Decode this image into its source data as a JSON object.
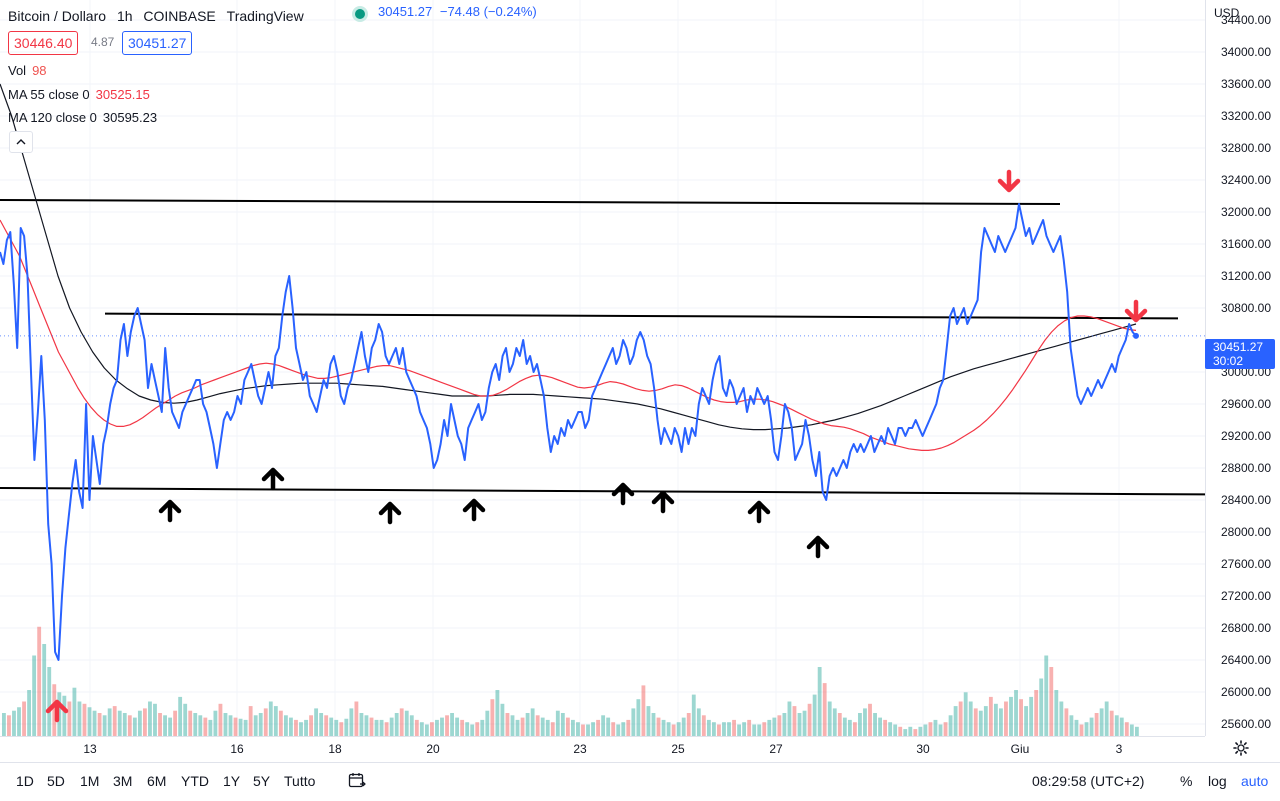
{
  "header": {
    "symbol": "Bitcoin / Dollaro",
    "interval": "1h",
    "exchange": "COINBASE",
    "source": "TradingView",
    "last": "30451.27",
    "change": "−74.48 (−0.24%)",
    "bid": "30446.40",
    "spread": "4.87",
    "ask": "30451.27"
  },
  "indicators": {
    "vol_label": "Vol",
    "vol_value": "98",
    "ma55_label": "MA 55 close 0",
    "ma55_value": "30525.15",
    "ma120_label": "MA 120 close 0",
    "ma120_value": "30595.23",
    "collapse_icon": "chevron-up-icon"
  },
  "price_axis": {
    "currency": "USD",
    "ticks": [
      "34400.00",
      "34000.00",
      "33600.00",
      "33200.00",
      "32800.00",
      "32400.00",
      "32000.00",
      "31600.00",
      "31200.00",
      "30800.00",
      "30000.00",
      "29600.00",
      "29200.00",
      "28800.00",
      "28400.00",
      "28000.00",
      "27600.00",
      "27200.00",
      "26800.00",
      "26400.00",
      "26000.00",
      "25600.00"
    ],
    "current_price": "30451.27",
    "countdown": "30:02"
  },
  "time_axis": {
    "ticks": [
      "13",
      "16",
      "18",
      "20",
      "23",
      "25",
      "27",
      "30",
      "Giu",
      "3"
    ]
  },
  "toolbar": {
    "ranges": [
      "1D",
      "5D",
      "1M",
      "3M",
      "6M",
      "YTD",
      "1Y",
      "5Y",
      "Tutto"
    ],
    "clock": "08:29:58 (UTC+2)",
    "percent": "%",
    "log": "log",
    "auto": "auto"
  },
  "colors": {
    "price_line": "#2962ff",
    "ma55": "#f23645",
    "ma120": "#131722",
    "volume_up": "#26a69a",
    "volume_down": "#ef5350",
    "arrow_up": "#000000",
    "arrow_down": "#f23645"
  },
  "chart_data": {
    "type": "line",
    "x_start": "2023-05-12 00:00",
    "x_step_hours": 1,
    "y_range": [
      25450,
      34650
    ],
    "series": [
      {
        "values": [
          31500,
          31350,
          31650,
          31750,
          31100,
          30300,
          31800,
          31700,
          31200,
          30000,
          28900,
          29500,
          30200,
          29400,
          28100,
          27600,
          26500,
          26400,
          27200,
          27800,
          28200,
          28600,
          28900,
          28500,
          28300,
          29600,
          28400,
          29200,
          28900,
          28600,
          29100,
          29300,
          29600,
          29800,
          29900,
          30400,
          30600,
          30200,
          30500,
          30700,
          30800,
          30600,
          30400,
          29800,
          30100,
          29900,
          29700,
          29500,
          30300,
          29800,
          29500,
          29400,
          29300,
          29500,
          29600,
          29700,
          29800,
          29900,
          29900,
          29600,
          29500,
          29300,
          29100,
          28800,
          29100,
          29400,
          29500,
          29400,
          29500,
          29700,
          29600,
          29900,
          30000,
          30100,
          29900,
          29700,
          29600,
          29800,
          30000,
          29800,
          30200,
          30300,
          30700,
          31000,
          31200,
          30800,
          30300,
          30100,
          29900,
          30000,
          29700,
          29600,
          29500,
          29700,
          29900,
          29800,
          30100,
          30200,
          30000,
          29700,
          29600,
          29800,
          29900,
          30100,
          30300,
          30500,
          30200,
          30000,
          30300,
          30400,
          30600,
          30500,
          30200,
          30100,
          30200,
          30300,
          30100,
          30300,
          30000,
          29900,
          29800,
          29700,
          29500,
          29400,
          29300,
          29100,
          28800,
          28900,
          29100,
          29400,
          29200,
          29600,
          29400,
          29200,
          29100,
          28900,
          29300,
          29400,
          29500,
          29600,
          29400,
          29500,
          29800,
          30000,
          30100,
          29900,
          30200,
          30300,
          30000,
          30100,
          30300,
          30200,
          30400,
          30100,
          30200,
          30000,
          30100,
          29900,
          29700,
          29300,
          29000,
          29200,
          29100,
          29300,
          29200,
          29400,
          29300,
          29400,
          29500,
          29500,
          29300,
          29400,
          29700,
          29800,
          29900,
          30000,
          30100,
          30200,
          30300,
          30100,
          30200,
          30400,
          30300,
          30100,
          30200,
          30400,
          30500,
          30400,
          30200,
          30100,
          29800,
          29400,
          29100,
          29300,
          29200,
          29100,
          29300,
          29200,
          29000,
          29300,
          29100,
          29300,
          29200,
          29600,
          29800,
          29700,
          29600,
          29900,
          30100,
          30200,
          29800,
          29700,
          29900,
          29800,
          29600,
          29700,
          29800,
          29500,
          29700,
          29600,
          29800,
          29700,
          29600,
          29700,
          29400,
          29000,
          28900,
          29200,
          29600,
          29500,
          29300,
          28900,
          29000,
          29100,
          29400,
          29200,
          28900,
          28700,
          29000,
          28500,
          28400,
          28700,
          28800,
          28700,
          28800,
          28900,
          28800,
          29000,
          29100,
          29000,
          29100,
          29000,
          29100,
          29200,
          29000,
          29100,
          29200,
          29100,
          29300,
          29200,
          29100,
          29300,
          29300,
          29200,
          29300,
          29300,
          29400,
          29300,
          29200,
          29300,
          29400,
          29500,
          29600,
          29800,
          29900,
          30300,
          30700,
          30800,
          30600,
          30700,
          30800,
          30600,
          30700,
          30800,
          30900,
          31500,
          31800,
          31700,
          31600,
          31500,
          31700,
          31600,
          31500,
          31600,
          31700,
          31800,
          32100,
          31900,
          31700,
          31800,
          31600,
          31700,
          31800,
          31900,
          31700,
          31600,
          31500,
          31600,
          31700,
          31400,
          31000,
          30300,
          30000,
          29700,
          29600,
          29700,
          29800,
          29700,
          29800,
          29900,
          29800,
          29900,
          30000,
          30100,
          30000,
          30200,
          30300,
          30400,
          30600,
          30500,
          30450
        ]
      },
      {
        "name": "MA 55 close 0",
        "values": [
          31900,
          31750,
          31600,
          31450,
          31250,
          31050,
          30850,
          30650,
          30450,
          30250,
          30100,
          29950,
          29800,
          29670,
          29560,
          29470,
          29400,
          29350,
          29320,
          29320,
          29340,
          29380,
          29430,
          29490,
          29550,
          29600,
          29650,
          29700,
          29740,
          29770,
          29800,
          29840,
          29870,
          29900,
          29930,
          29960,
          29990,
          30020,
          30050,
          30080,
          30100,
          30110,
          30100,
          30080,
          30050,
          30020,
          29990,
          29960,
          29940,
          29920,
          29920,
          29930,
          29950,
          29970,
          29990,
          30010,
          30030,
          30050,
          30070,
          30080,
          30080,
          30060,
          30040,
          30020,
          29990,
          29960,
          29930,
          29900,
          29870,
          29840,
          29810,
          29780,
          29750,
          29720,
          29700,
          29700,
          29710,
          29740,
          29780,
          29830,
          29880,
          29920,
          29950,
          29960,
          29950,
          29930,
          29900,
          29870,
          29840,
          29810,
          29800,
          29810,
          29830,
          29860,
          29880,
          29870,
          29850,
          29820,
          29790,
          29770,
          29760,
          29770,
          29790,
          29820,
          29840,
          29830,
          29800,
          29760,
          29720,
          29680,
          29650,
          29630,
          29620,
          29620,
          29630,
          29650,
          29660,
          29660,
          29650,
          29630,
          29600,
          29570,
          29530,
          29490,
          29450,
          29410,
          29380,
          29350,
          29330,
          29320,
          29310,
          29290,
          29260,
          29230,
          29190,
          29160,
          29130,
          29100,
          29080,
          29060,
          29040,
          29030,
          29020,
          29020,
          29030,
          29050,
          29080,
          29120,
          29170,
          29220,
          29270,
          29330,
          29400,
          29480,
          29570,
          29670,
          29780,
          29900,
          30020,
          30150,
          30280,
          30400,
          30500,
          30580,
          30640,
          30680,
          30700,
          30700,
          30690,
          30670,
          30640,
          30610,
          30580,
          30550,
          30530,
          30520
        ]
      },
      {
        "name": "MA 120 close 0",
        "values": [
          33600,
          33200,
          32700,
          32200,
          31700,
          31200,
          30800,
          30500,
          30250,
          30050,
          29900,
          29790,
          29700,
          29650,
          29620,
          29610,
          29620,
          29650,
          29690,
          29730,
          29760,
          29790,
          29810,
          29830,
          29840,
          29850,
          29860,
          29860,
          29860,
          29860,
          29850,
          29840,
          29830,
          29820,
          29800,
          29780,
          29760,
          29740,
          29720,
          29700,
          29700,
          29700,
          29700,
          29710,
          29720,
          29720,
          29720,
          29710,
          29700,
          29690,
          29680,
          29670,
          29660,
          29640,
          29620,
          29600,
          29570,
          29540,
          29500,
          29460,
          29420,
          29380,
          29340,
          29310,
          29290,
          29280,
          29280,
          29290,
          29300,
          29320,
          29340,
          29370,
          29400,
          29440,
          29480,
          29530,
          29580,
          29640,
          29700,
          29760,
          29820,
          29880,
          29940,
          29990,
          30040,
          30080,
          30120,
          30160,
          30200,
          30240,
          30280,
          30320,
          30360,
          30400,
          30440,
          30480,
          30520,
          30560,
          30600
        ]
      }
    ],
    "levels": [
      {
        "y_start": 32150,
        "y_end": 32100
      },
      {
        "y_start": 30730,
        "y_end": 30670
      },
      {
        "y_start": 28550,
        "y_end": 28470
      }
    ],
    "volume": [
      20,
      18,
      22,
      25,
      30,
      40,
      70,
      95,
      80,
      60,
      45,
      38,
      35,
      30,
      42,
      30,
      28,
      25,
      22,
      20,
      18,
      24,
      26,
      22,
      20,
      18,
      16,
      22,
      24,
      30,
      28,
      20,
      18,
      16,
      22,
      34,
      28,
      22,
      20,
      18,
      16,
      14,
      22,
      28,
      20,
      18,
      16,
      15,
      14,
      26,
      18,
      20,
      24,
      30,
      26,
      22,
      18,
      16,
      14,
      12,
      14,
      18,
      24,
      20,
      18,
      16,
      14,
      12,
      15,
      24,
      30,
      20,
      18,
      16,
      14,
      14,
      12,
      16,
      20,
      24,
      22,
      18,
      14,
      12,
      10,
      12,
      14,
      16,
      18,
      20,
      16,
      14,
      12,
      10,
      12,
      14,
      22,
      32,
      40,
      28,
      20,
      18,
      14,
      16,
      20,
      24,
      18,
      16,
      14,
      12,
      22,
      20,
      16,
      14,
      12,
      10,
      10,
      12,
      14,
      18,
      16,
      12,
      10,
      12,
      14,
      24,
      32,
      44,
      26,
      20,
      16,
      14,
      12,
      10,
      12,
      16,
      20,
      36,
      24,
      18,
      14,
      12,
      10,
      12,
      12,
      14,
      10,
      12,
      14,
      10,
      10,
      12,
      14,
      16,
      18,
      20,
      30,
      26,
      20,
      22,
      28,
      36,
      60,
      46,
      30,
      24,
      20,
      16,
      14,
      12,
      20,
      24,
      28,
      20,
      16,
      14,
      12,
      10,
      8,
      6,
      8,
      6,
      8,
      10,
      12,
      14,
      10,
      12,
      18,
      26,
      30,
      38,
      30,
      24,
      22,
      26,
      34,
      28,
      24,
      30,
      34,
      40,
      32,
      26,
      34,
      40,
      50,
      70,
      60,
      40,
      30,
      24,
      18,
      14,
      10,
      12,
      16,
      20,
      24,
      30,
      22,
      18,
      16,
      12,
      10,
      8
    ]
  }
}
